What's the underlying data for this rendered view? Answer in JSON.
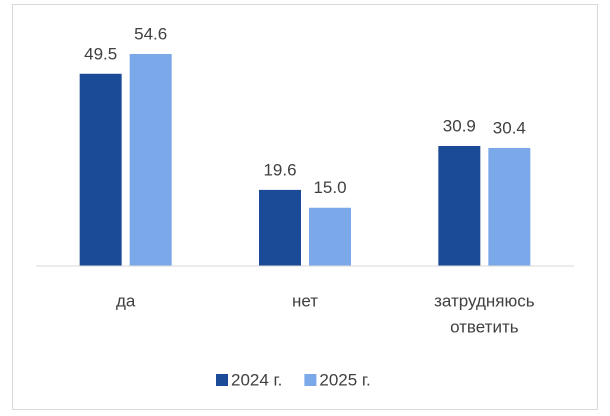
{
  "chart_data": {
    "type": "bar",
    "categories": [
      "да",
      "нет",
      [
        "затрудняюсь",
        "ответить"
      ]
    ],
    "series": [
      {
        "name": "2024 г.",
        "color": "#1b4a96",
        "values": [
          49.5,
          19.6,
          30.9
        ],
        "value_labels": [
          "49.5",
          "19.6",
          "30.9"
        ]
      },
      {
        "name": "2025 г.",
        "color": "#7ba8e8",
        "values": [
          54.6,
          15.0,
          30.4
        ],
        "value_labels": [
          "54.6",
          "15.0",
          "30.4"
        ]
      }
    ],
    "ylim": [
      0,
      60
    ],
    "legend": "bottom"
  }
}
